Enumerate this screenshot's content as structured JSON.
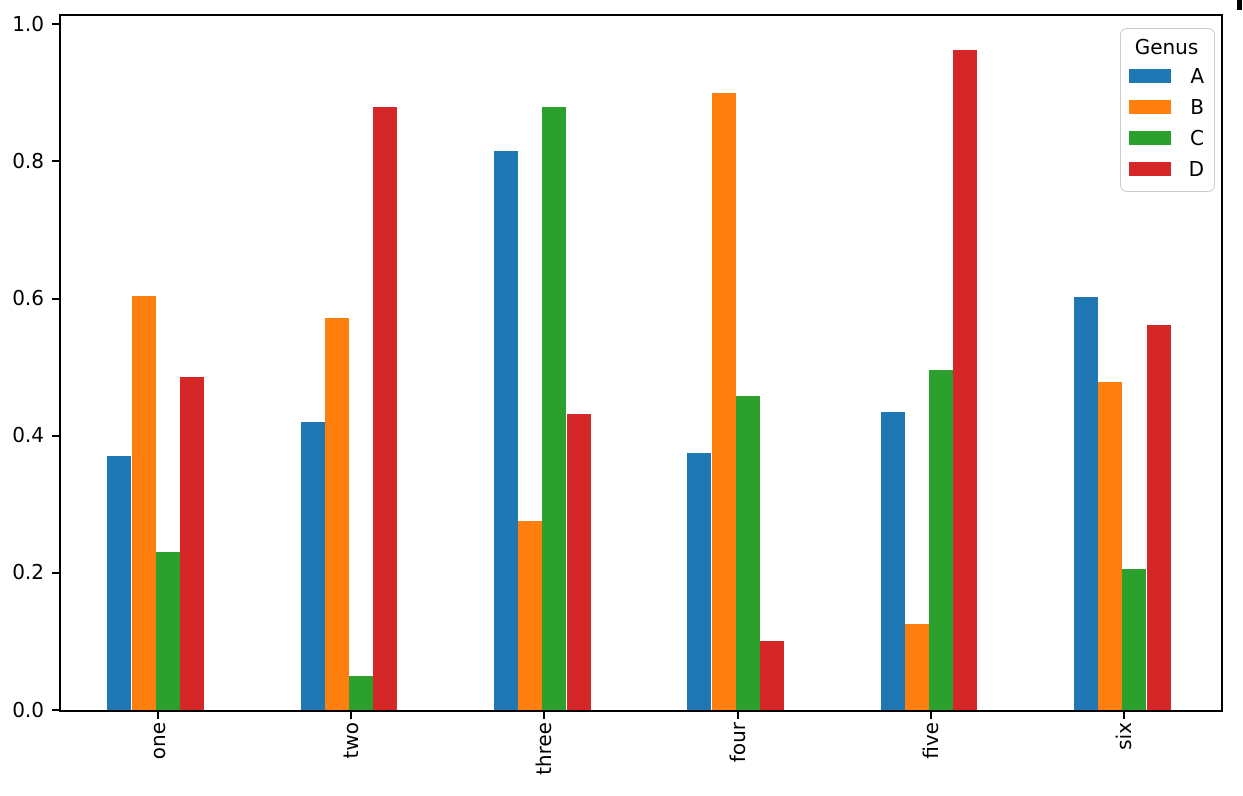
{
  "figure": {
    "background": "#ffffff",
    "axis_color": "#000000"
  },
  "chart_data": {
    "type": "bar",
    "title": "",
    "xlabel": "",
    "ylabel": "",
    "categories": [
      "one",
      "two",
      "three",
      "four",
      "five",
      "six"
    ],
    "series": [
      {
        "name": "A",
        "color": "#1f77b4",
        "values": [
          0.371,
          0.42,
          0.815,
          0.375,
          0.434,
          0.602
        ]
      },
      {
        "name": "B",
        "color": "#ff7f0e",
        "values": [
          0.603,
          0.571,
          0.276,
          0.9,
          0.125,
          0.478
        ]
      },
      {
        "name": "C",
        "color": "#2ca02c",
        "values": [
          0.23,
          0.05,
          0.88,
          0.458,
          0.496,
          0.206
        ]
      },
      {
        "name": "D",
        "color": "#d62728",
        "values": [
          0.485,
          0.88,
          0.431,
          0.1,
          0.962,
          0.561
        ]
      }
    ],
    "y_ticks": [
      "0.0",
      "0.2",
      "0.4",
      "0.6",
      "0.8",
      "1.0"
    ],
    "ylim": [
      0,
      1.012
    ],
    "x_tick_rotation": 90,
    "grid": false,
    "legend": {
      "title": "Genus",
      "position": "upper right",
      "entries": [
        "A",
        "B",
        "C",
        "D"
      ]
    }
  }
}
